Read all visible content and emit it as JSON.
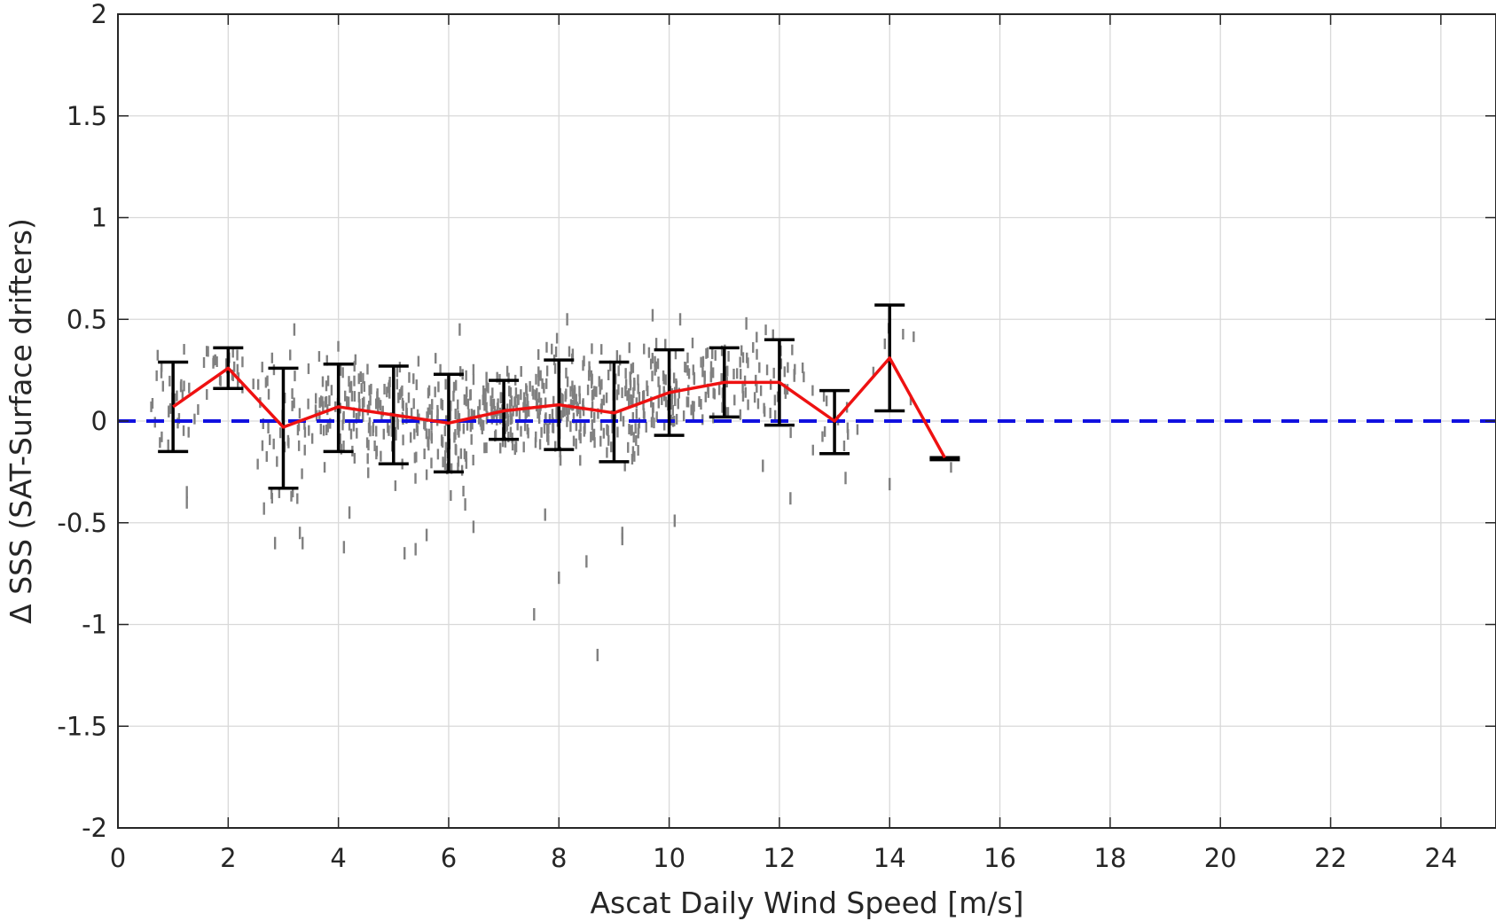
{
  "chart_data": {
    "type": "scatter",
    "xlabel": "Ascat Daily Wind Speed [m/s]",
    "ylabel": "Δ SSS (SAT-Surface drifters)",
    "xlim": [
      0,
      25
    ],
    "ylim": [
      -2,
      2
    ],
    "x_ticks": [
      0,
      2,
      4,
      6,
      8,
      10,
      12,
      14,
      16,
      18,
      20,
      22,
      24
    ],
    "y_ticks": [
      2,
      1.5,
      1,
      0.5,
      0,
      -0.5,
      -1,
      -1.5,
      -2
    ],
    "y_tick_labels": [
      "2",
      "1.5",
      "1",
      "0.5",
      "0",
      "-0.5",
      "-1",
      "-1.5",
      "-2"
    ],
    "grid": true,
    "reference_line": {
      "y": 0,
      "style": "dashed",
      "color": "#1010e0"
    },
    "mean_series": {
      "color": "#ee1111",
      "x": [
        1,
        2,
        3,
        4,
        5,
        6,
        7,
        8,
        9,
        10,
        11,
        12,
        13,
        14,
        15
      ],
      "y": [
        0.07,
        0.26,
        -0.03,
        0.07,
        0.03,
        -0.01,
        0.05,
        0.08,
        0.04,
        0.14,
        0.19,
        0.19,
        0.0,
        0.31,
        -0.18
      ]
    },
    "error_bars": {
      "color": "#000000",
      "x": [
        1,
        2,
        3,
        4,
        5,
        6,
        7,
        8,
        9,
        10,
        11,
        12,
        13,
        14,
        15
      ],
      "lower": [
        -0.15,
        0.16,
        -0.33,
        -0.15,
        -0.21,
        -0.25,
        -0.09,
        -0.14,
        -0.2,
        -0.07,
        0.02,
        -0.02,
        -0.16,
        0.05,
        -0.19
      ],
      "upper": [
        0.29,
        0.36,
        0.26,
        0.28,
        0.27,
        0.23,
        0.2,
        0.3,
        0.29,
        0.35,
        0.36,
        0.4,
        0.15,
        0.57,
        -0.18
      ]
    },
    "scatter": {
      "color": "#808080",
      "x_range": [
        0.6,
        15.2
      ],
      "bin_stats_note_x": [
        1,
        2,
        3,
        4,
        5,
        6,
        7,
        8,
        9,
        10,
        11,
        12,
        13,
        14,
        15
      ],
      "outliers": [
        [
          1.25,
          -0.35
        ],
        [
          1.25,
          -0.4
        ],
        [
          2.65,
          -0.43
        ],
        [
          2.85,
          -0.6
        ],
        [
          3.3,
          -0.55
        ],
        [
          3.35,
          -0.6
        ],
        [
          4.2,
          -0.45
        ],
        [
          4.1,
          -0.62
        ],
        [
          5.2,
          -0.65
        ],
        [
          5.4,
          -0.63
        ],
        [
          5.6,
          -0.56
        ],
        [
          6.3,
          -0.41
        ],
        [
          6.45,
          -0.52
        ],
        [
          7.55,
          -0.95
        ],
        [
          7.75,
          -0.46
        ],
        [
          8.0,
          -0.77
        ],
        [
          8.5,
          -0.69
        ],
        [
          8.7,
          -1.15
        ],
        [
          9.15,
          -0.55
        ],
        [
          9.15,
          -0.58
        ],
        [
          10.1,
          -0.49
        ],
        [
          11.7,
          -0.22
        ],
        [
          12.2,
          -0.38
        ],
        [
          14.0,
          -0.31
        ],
        [
          13.2,
          -0.28
        ],
        [
          3.2,
          0.45
        ],
        [
          6.2,
          0.45
        ],
        [
          8.15,
          0.5
        ],
        [
          9.7,
          0.52
        ],
        [
          10.2,
          0.5
        ],
        [
          11.4,
          0.48
        ]
      ]
    }
  }
}
